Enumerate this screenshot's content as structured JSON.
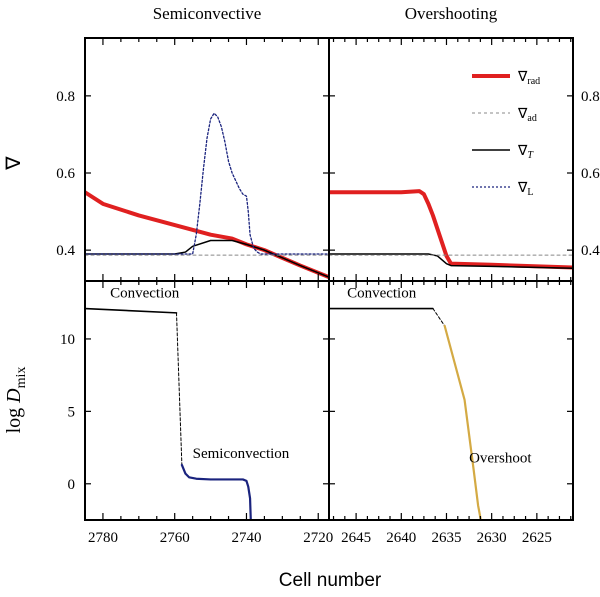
{
  "chart_data": {
    "type": "line",
    "xlabel": "Cell number",
    "panels": [
      {
        "id": "top-left",
        "title": "Semiconvective",
        "ylabel": "∇",
        "xlim": [
          2785,
          2717
        ],
        "ylim": [
          0.32,
          0.95
        ],
        "yticks": [
          0.4,
          0.6,
          0.8
        ],
        "ytick_labels": [
          "0.4",
          "0.6",
          "0.8"
        ],
        "series": [
          {
            "name": "grad_rad",
            "color": "#e02020",
            "width": 4,
            "dash": "",
            "x": [
              2785,
              2780,
              2770,
              2760,
              2750,
              2744,
              2740,
              2735,
              2730,
              2725,
              2717
            ],
            "y": [
              0.55,
              0.52,
              0.49,
              0.465,
              0.44,
              0.43,
              0.415,
              0.4,
              0.38,
              0.36,
              0.33
            ]
          },
          {
            "name": "grad_T",
            "color": "#000000",
            "width": 1.5,
            "dash": "",
            "x": [
              2785,
              2760,
              2757,
              2755,
              2750,
              2744,
              2740,
              2735,
              2730,
              2725,
              2717
            ],
            "y": [
              0.39,
              0.39,
              0.395,
              0.41,
              0.425,
              0.425,
              0.415,
              0.4,
              0.38,
              0.36,
              0.33
            ]
          },
          {
            "name": "grad_ad",
            "color": "#888888",
            "width": 1,
            "dash": "3,3",
            "x": [
              2785,
              2717
            ],
            "y": [
              0.387,
              0.387
            ]
          },
          {
            "name": "grad_L",
            "color": "#1a237e",
            "width": 1.3,
            "dash": "2,2",
            "x": [
              2785,
              2755,
              2754,
              2753,
              2752,
              2751,
              2750,
              2749,
              2748,
              2747,
              2746,
              2745,
              2744,
              2743,
              2742,
              2741,
              2740,
              2739.5,
              2739,
              2738,
              2737,
              2736,
              2717
            ],
            "y": [
              0.39,
              0.39,
              0.44,
              0.52,
              0.61,
              0.69,
              0.74,
              0.755,
              0.745,
              0.72,
              0.68,
              0.63,
              0.6,
              0.58,
              0.56,
              0.545,
              0.54,
              0.5,
              0.44,
              0.405,
              0.395,
              0.39,
              0.39
            ]
          }
        ],
        "annotations": []
      },
      {
        "id": "top-right",
        "title": "Overshooting",
        "ylabel": "",
        "xlim": [
          2648,
          2621
        ],
        "ylim": [
          0.32,
          0.95
        ],
        "yticks": [
          0.4,
          0.6,
          0.8
        ],
        "ytick_labels": [
          "0.4",
          "0.6",
          "0.8"
        ],
        "series": [
          {
            "name": "grad_rad",
            "color": "#e02020",
            "width": 4,
            "dash": "",
            "x": [
              2648,
              2640,
              2638,
              2637.5,
              2637,
              2636.5,
              2636,
              2635.5,
              2635,
              2634.5,
              2630,
              2621
            ],
            "y": [
              0.55,
              0.55,
              0.553,
              0.545,
              0.52,
              0.49,
              0.455,
              0.42,
              0.385,
              0.365,
              0.362,
              0.355
            ]
          },
          {
            "name": "grad_T",
            "color": "#000000",
            "width": 1.5,
            "dash": "",
            "x": [
              2648,
              2637,
              2636,
              2635.5,
              2635,
              2634.5,
              2630,
              2621
            ],
            "y": [
              0.39,
              0.39,
              0.385,
              0.375,
              0.365,
              0.36,
              0.358,
              0.353
            ]
          },
          {
            "name": "grad_ad",
            "color": "#888888",
            "width": 1,
            "dash": "3,3",
            "x": [
              2648,
              2621
            ],
            "y": [
              0.387,
              0.387
            ]
          }
        ],
        "annotations": []
      },
      {
        "id": "bottom-left",
        "title": "",
        "ylabel": "log D_mix",
        "xlim": [
          2785,
          2717
        ],
        "ylim": [
          -2.5,
          14.0
        ],
        "yticks": [
          0,
          5,
          10
        ],
        "ytick_labels": [
          "0",
          "5",
          "10"
        ],
        "xticks": [
          2780,
          2760,
          2740,
          2720
        ],
        "xtick_labels": [
          "2780",
          "2760",
          "2740",
          "2720"
        ],
        "series": [
          {
            "name": "convection",
            "color": "#000000",
            "width": 1.6,
            "dash": "",
            "x": [
              2785,
              2759.5
            ],
            "y": [
              12.1,
              11.8
            ]
          },
          {
            "name": "transition",
            "color": "#000000",
            "width": 1,
            "dash": "3,2",
            "x": [
              2759.5,
              2758
            ],
            "y": [
              11.8,
              1.3
            ]
          },
          {
            "name": "semiconvection",
            "color": "#1a237e",
            "width": 2.2,
            "dash": "",
            "x": [
              2758,
              2757,
              2756,
              2754,
              2750,
              2745,
              2741,
              2740,
              2739.5,
              2739,
              2738.8
            ],
            "y": [
              1.3,
              0.7,
              0.45,
              0.35,
              0.3,
              0.3,
              0.3,
              0.2,
              -0.2,
              -1.0,
              -2.5
            ]
          }
        ],
        "annotations": [
          {
            "text": "Convection",
            "x": 2778,
            "y": 12.6
          },
          {
            "text": "Semiconvection",
            "x": 2755,
            "y": 1.5
          }
        ]
      },
      {
        "id": "bottom-right",
        "title": "",
        "ylabel": "",
        "xlim": [
          2648,
          2621
        ],
        "ylim": [
          -2.5,
          14.0
        ],
        "yticks": [
          0,
          5,
          10
        ],
        "ytick_labels": [
          "0",
          "5",
          "10"
        ],
        "xticks": [
          2645,
          2640,
          2635,
          2630,
          2625
        ],
        "xtick_labels": [
          "2645",
          "2640",
          "2635",
          "2630",
          "2625"
        ],
        "series": [
          {
            "name": "convection",
            "color": "#000000",
            "width": 1.6,
            "dash": "",
            "x": [
              2648,
              2636.5
            ],
            "y": [
              12.1,
              12.1
            ]
          },
          {
            "name": "transition",
            "color": "#000000",
            "width": 1,
            "dash": "3,2",
            "x": [
              2636.5,
              2635.2
            ],
            "y": [
              12.1,
              10.9
            ]
          },
          {
            "name": "overshoot",
            "color": "#d4aa44",
            "width": 2.2,
            "dash": "",
            "x": [
              2635.2,
              2633,
              2632,
              2631.5,
              2631.2
            ],
            "y": [
              10.9,
              5.8,
              1.0,
              -1.5,
              -2.5
            ]
          }
        ],
        "annotations": [
          {
            "text": "Convection",
            "x": 2646,
            "y": 12.6
          },
          {
            "text": "Overshoot",
            "x": 2632.5,
            "y": 1.2
          }
        ]
      }
    ],
    "legend": {
      "position": "top-right",
      "entries": [
        {
          "label": "∇",
          "sub": "rad",
          "italic_sub": false,
          "color": "#e02020",
          "width": 4,
          "dash": ""
        },
        {
          "label": "∇",
          "sub": "ad",
          "italic_sub": false,
          "color": "#888888",
          "width": 1,
          "dash": "3,3"
        },
        {
          "label": "∇",
          "sub": "T",
          "italic_sub": true,
          "color": "#000000",
          "width": 1.5,
          "dash": ""
        },
        {
          "label": "∇",
          "sub": "L",
          "italic_sub": false,
          "color": "#1a237e",
          "width": 1.3,
          "dash": "2,2"
        }
      ]
    }
  }
}
